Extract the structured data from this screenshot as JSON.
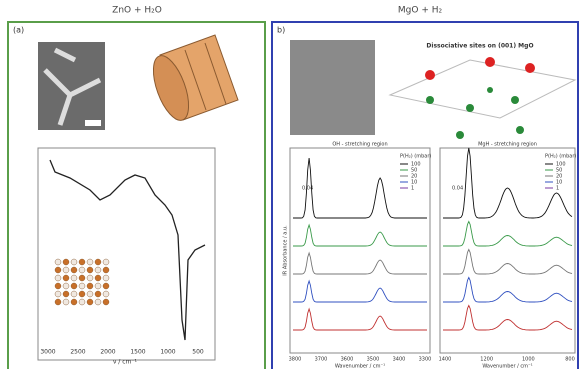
{
  "header": {
    "left": "ZnO + H₂O",
    "right": "MgO + H₂"
  },
  "panel_a": {
    "label": "(a)",
    "x_axis": "ν / cm⁻¹",
    "x_ticks": [
      "3000",
      "2500",
      "2000",
      "1500",
      "1000",
      "500"
    ]
  },
  "panel_b": {
    "label": "b)",
    "title": "Dissociative sites on (001) MgO",
    "plots": [
      {
        "title": "OH - stretching region",
        "legend_title": "P(H₂) (mbar)",
        "legend": [
          "100",
          "50",
          "20",
          "10",
          "1"
        ],
        "scale": "0.04",
        "x_axis": "Wavenumber / cm⁻¹",
        "y_axis": "IR Absorbance / a.u.",
        "x_ticks": [
          "3800",
          "3700",
          "3600",
          "3500",
          "3400",
          "3300"
        ]
      },
      {
        "title": "MgH - stretching region",
        "legend_title": "P(H₂) (mbar)",
        "legend": [
          "100",
          "50",
          "20",
          "10",
          "1"
        ],
        "scale": "0.04",
        "x_axis": "Wavenumber / cm⁻¹",
        "x_ticks": [
          "1400",
          "1200",
          "1000",
          "800"
        ]
      }
    ]
  }
}
